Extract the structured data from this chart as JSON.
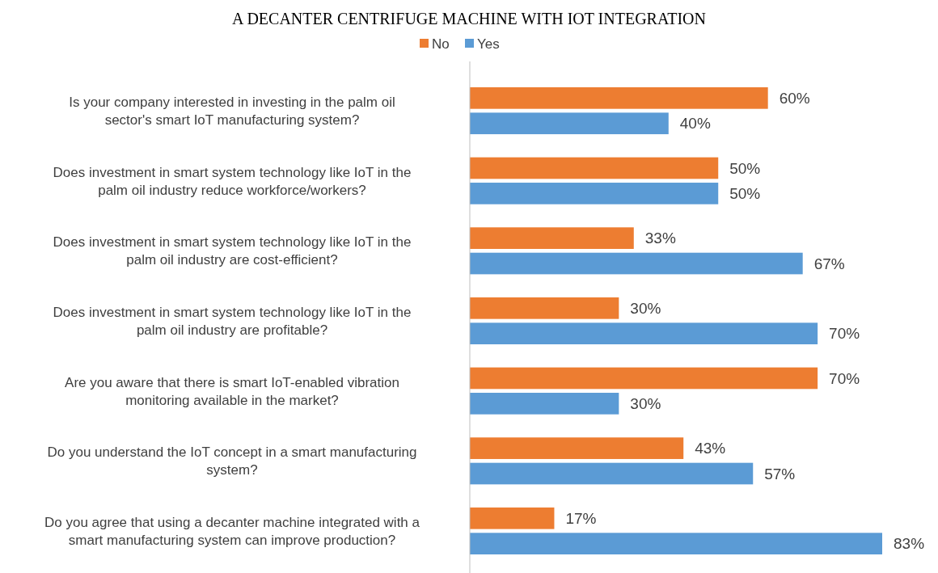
{
  "chart_data": {
    "type": "bar",
    "orientation": "horizontal",
    "title": "A DECANTER CENTRIFUGE MACHINE WITH IOT INTEGRATION",
    "categories": [
      "Is your company interested in investing in the palm oil sector's smart IoT manufacturing system?",
      "Does investment in smart system technology like IoT in the palm oil industry reduce workforce/workers?",
      "Does investment in smart system technology like IoT in the palm oil industry are cost-efficient?",
      "Does investment in smart system technology like IoT in the palm oil industry are profitable?",
      "Are you aware that there is smart IoT-enabled vibration monitoring available in the market?",
      "Do you understand the IoT concept in a smart manufacturing system?",
      "Do you agree that using a decanter machine integrated with a smart manufacturing system can improve production?"
    ],
    "series": [
      {
        "name": "No",
        "color": "#ed7d31",
        "values": [
          60,
          50,
          33,
          30,
          70,
          43,
          17
        ],
        "value_labels": [
          "60%",
          "50%",
          "33%",
          "30%",
          "70%",
          "43%",
          "17%"
        ]
      },
      {
        "name": "Yes",
        "color": "#5b9bd5",
        "values": [
          40,
          50,
          67,
          70,
          30,
          57,
          83
        ],
        "value_labels": [
          "40%",
          "50%",
          "67%",
          "70%",
          "30%",
          "57%",
          "83%"
        ]
      }
    ],
    "legend": "top"
  }
}
